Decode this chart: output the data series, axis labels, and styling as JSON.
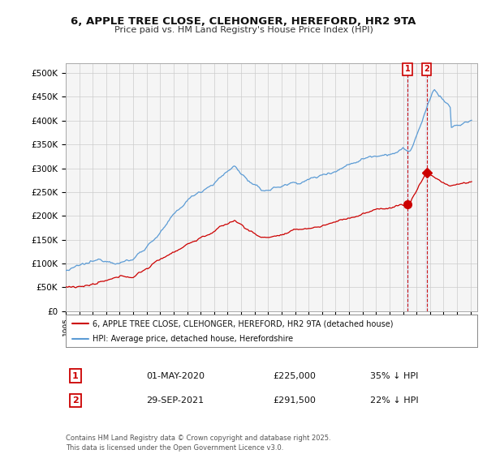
{
  "title": "6, APPLE TREE CLOSE, CLEHONGER, HEREFORD, HR2 9TA",
  "subtitle": "Price paid vs. HM Land Registry's House Price Index (HPI)",
  "legend_label_red": "6, APPLE TREE CLOSE, CLEHONGER, HEREFORD, HR2 9TA (detached house)",
  "legend_label_blue": "HPI: Average price, detached house, Herefordshire",
  "annotation1_date": "01-MAY-2020",
  "annotation1_price": "£225,000",
  "annotation1_hpi": "35% ↓ HPI",
  "annotation2_date": "29-SEP-2021",
  "annotation2_price": "£291,500",
  "annotation2_hpi": "22% ↓ HPI",
  "footer": "Contains HM Land Registry data © Crown copyright and database right 2025.\nThis data is licensed under the Open Government Licence v3.0.",
  "color_red": "#cc0000",
  "color_blue": "#5b9bd5",
  "color_blue_fill": "#dce9f5",
  "background_plot": "#f5f5f5",
  "background_fig": "#ffffff",
  "ylim": [
    0,
    520000
  ],
  "yticks": [
    0,
    50000,
    100000,
    150000,
    200000,
    250000,
    300000,
    350000,
    400000,
    450000,
    500000
  ],
  "ytick_labels": [
    "£0",
    "£50K",
    "£100K",
    "£150K",
    "£200K",
    "£250K",
    "£300K",
    "£350K",
    "£400K",
    "£450K",
    "£500K"
  ],
  "sale1_year": 2020.33,
  "sale1_price": 225000,
  "sale2_year": 2021.75,
  "sale2_price": 291500,
  "xmin": 1995,
  "xmax": 2025.5
}
